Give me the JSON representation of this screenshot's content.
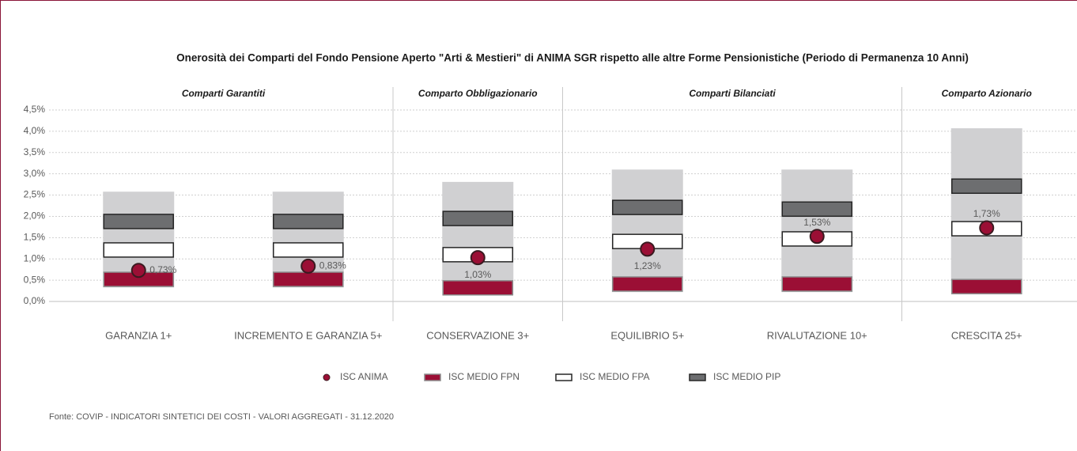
{
  "chart_data": {
    "type": "range-marker",
    "title": "Onerosità dei Comparti del Fondo Pensione Aperto \"Arti & Mestieri\" di ANIMA SGR rispetto alle altre Forme Pensionistiche (Periodo di Permanenza 10 Anni)",
    "groups": [
      "Comparti Garantiti",
      "Comparto Obbligazionario",
      "Comparti Bilanciati",
      "Comparto Azionario"
    ],
    "categories": [
      "GARANZIA 1+",
      "INCREMENTO E GARANZIA 5+",
      "CONSERVAZIONE 3+",
      "EQUILIBRIO 5+",
      "RIVALUTAZIONE 10+",
      "CRESCITA 25+"
    ],
    "ranges": [
      [
        0.33,
        2.58
      ],
      [
        0.33,
        2.58
      ],
      [
        0.15,
        2.81
      ],
      [
        0.22,
        3.1
      ],
      [
        0.22,
        3.1
      ],
      [
        0.17,
        4.07
      ]
    ],
    "range_color": "#d0d0d2",
    "series": [
      {
        "name": "ISC ANIMA",
        "color": "#9b0f35",
        "marker": "dot",
        "values": [
          0.73,
          0.83,
          1.03,
          1.23,
          1.53,
          1.73
        ],
        "value_labels": [
          "0,73%",
          "0,83%",
          "1,03%",
          "1,23%",
          "1,53%",
          "1,73%"
        ]
      },
      {
        "name": "ISC MEDIO FPN",
        "color": "#9b0f35",
        "marker": "box",
        "values": [
          0.52,
          0.52,
          0.32,
          0.41,
          0.41,
          0.35
        ]
      },
      {
        "name": "ISC MEDIO FPA",
        "color": "#ffffff",
        "marker": "box",
        "values": [
          1.21,
          1.21,
          1.1,
          1.41,
          1.47,
          1.71
        ]
      },
      {
        "name": "ISC MEDIO PIP",
        "color": "#6d6e70",
        "marker": "box",
        "values": [
          1.88,
          1.88,
          1.95,
          2.21,
          2.17,
          2.71
        ]
      }
    ],
    "ylim": [
      0,
      4.5
    ],
    "yticks": [
      {
        "value": 0,
        "label": "0,0%"
      },
      {
        "value": 0.5,
        "label": "0,5%"
      },
      {
        "value": 1,
        "label": "1,0%"
      },
      {
        "value": 1.5,
        "label": "1,5%"
      },
      {
        "value": 2,
        "label": "2,0%"
      },
      {
        "value": 2.5,
        "label": "2,5%"
      },
      {
        "value": 3,
        "label": "3,0%"
      },
      {
        "value": 3.5,
        "label": "3,5%"
      },
      {
        "value": 4,
        "label": "4,0%"
      },
      {
        "value": 4.5,
        "label": "4,5%"
      }
    ],
    "grid": true,
    "legend": "bottom",
    "source": "Fonte: COVIP - INDICATORI SINTETICI DEI COSTI - VALORI AGGREGATI - 31.12.2020"
  }
}
